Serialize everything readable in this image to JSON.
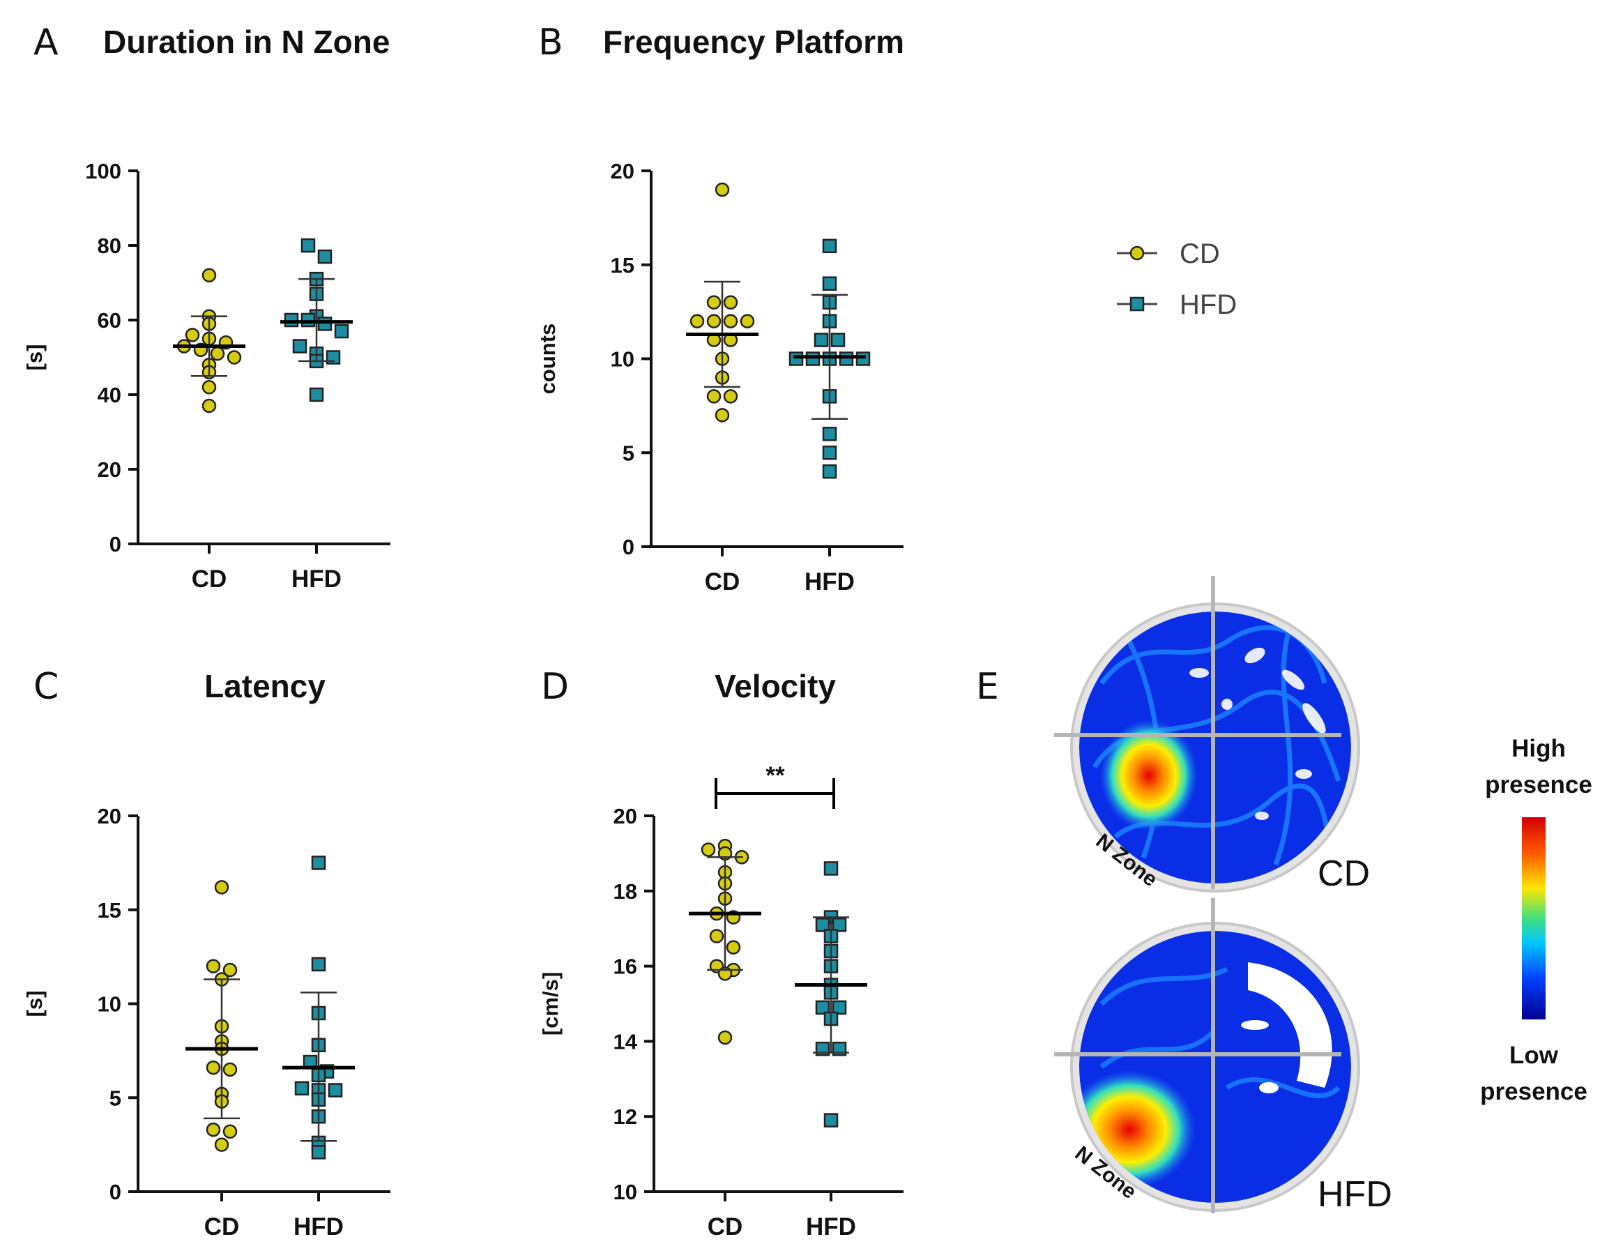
{
  "chart_data": [
    {
      "id": "A",
      "type": "scatter",
      "panel_label": "A",
      "title": "Duration in N Zone",
      "ylabel": "[s]",
      "ylim": [
        0,
        100
      ],
      "yticks": [
        0,
        20,
        40,
        60,
        80,
        100
      ],
      "categories": [
        "CD",
        "HFD"
      ],
      "series": [
        {
          "name": "CD",
          "values": [
            72,
            61,
            59,
            56,
            55,
            54,
            53,
            52,
            51,
            50,
            48,
            46,
            42,
            37
          ],
          "mean": 53,
          "sd_low": 45,
          "sd_high": 61
        },
        {
          "name": "HFD",
          "values": [
            80,
            77,
            71,
            67,
            61,
            60,
            60,
            59,
            57,
            53,
            51,
            50,
            49,
            40
          ],
          "mean": 59.5,
          "sd_low": 49,
          "sd_high": 71
        }
      ]
    },
    {
      "id": "B",
      "type": "scatter",
      "panel_label": "B",
      "title": "Frequency Platform",
      "ylabel": "counts",
      "ylim": [
        0,
        20
      ],
      "yticks": [
        0,
        5,
        10,
        15,
        20
      ],
      "categories": [
        "CD",
        "HFD"
      ],
      "series": [
        {
          "name": "CD",
          "values": [
            19,
            13,
            13,
            12,
            12,
            12,
            12,
            11,
            11,
            10,
            9,
            8,
            8,
            7
          ],
          "mean": 11.3,
          "sd_low": 8.5,
          "sd_high": 14.1
        },
        {
          "name": "HFD",
          "values": [
            16,
            14,
            13,
            12,
            11,
            11,
            10,
            10,
            10,
            10,
            10,
            8,
            6,
            5,
            4
          ],
          "mean": 10.1,
          "sd_low": 6.8,
          "sd_high": 13.4
        }
      ]
    },
    {
      "id": "C",
      "type": "scatter",
      "panel_label": "C",
      "title": "Latency",
      "ylabel": "[s]",
      "ylim": [
        0,
        20
      ],
      "yticks": [
        0,
        5,
        10,
        15,
        20
      ],
      "categories": [
        "CD",
        "HFD"
      ],
      "series": [
        {
          "name": "CD",
          "values": [
            16.2,
            12.0,
            11.8,
            11.3,
            8.8,
            8.0,
            7.6,
            6.6,
            6.5,
            5.2,
            4.8,
            3.3,
            3.2,
            2.5
          ],
          "mean": 7.6,
          "sd_low": 3.9,
          "sd_high": 11.3
        },
        {
          "name": "HFD",
          "values": [
            17.5,
            12.1,
            9.5,
            7.8,
            6.9,
            6.4,
            6.2,
            5.5,
            5.4,
            5.4,
            4.9,
            4.0,
            2.6,
            2.1
          ],
          "mean": 6.6,
          "sd_low": 2.7,
          "sd_high": 10.6
        }
      ]
    },
    {
      "id": "D",
      "type": "scatter",
      "panel_label": "D",
      "title": "Velocity",
      "ylabel": "[cm/s]",
      "ylim": [
        10,
        20
      ],
      "yticks": [
        10,
        12,
        14,
        16,
        18,
        20
      ],
      "categories": [
        "CD",
        "HFD"
      ],
      "significance": "**",
      "series": [
        {
          "name": "CD",
          "values": [
            19.2,
            19.1,
            19.0,
            18.9,
            18.5,
            18.2,
            17.8,
            17.4,
            17.3,
            16.8,
            16.5,
            16.0,
            15.9,
            15.8,
            14.1
          ],
          "mean": 17.4,
          "sd_low": 15.9,
          "sd_high": 18.9
        },
        {
          "name": "HFD",
          "values": [
            18.6,
            17.3,
            17.1,
            17.1,
            16.8,
            16.4,
            16.0,
            15.5,
            15.3,
            14.9,
            14.9,
            14.6,
            13.8,
            13.8,
            11.9
          ],
          "mean": 15.5,
          "sd_low": 13.7,
          "sd_high": 17.3
        }
      ]
    }
  ],
  "legend": [
    {
      "name": "CD",
      "marker": "circle"
    },
    {
      "name": "HFD",
      "marker": "square"
    }
  ],
  "heatmap": {
    "panel_label": "E",
    "maps": [
      {
        "group": "CD",
        "zone_label": "N Zone"
      },
      {
        "group": "HFD",
        "zone_label": "N Zone"
      }
    ],
    "colorbar": {
      "high_line1": "High",
      "high_line2": "presence",
      "low_line1": "Low",
      "low_line2": "presence"
    }
  },
  "colors": {
    "cd": "#d6cd12",
    "hfd": "#1d8ea2",
    "axis": "#111111",
    "heat_low": "#00008f",
    "heat_high": "#ff0000"
  }
}
